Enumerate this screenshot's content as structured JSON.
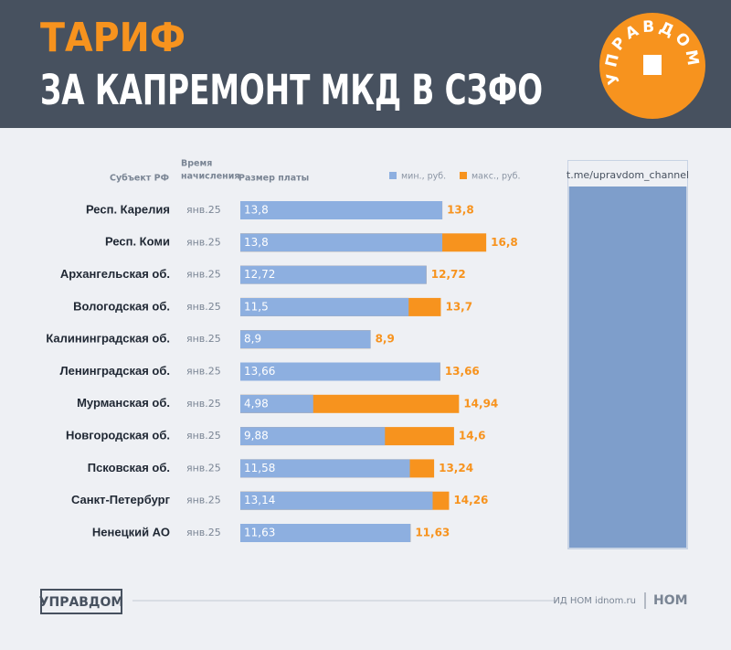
{
  "header": {
    "title_line1": "ТАРИФ",
    "title_line2": "ЗА КАПРЕМОНТ МКД В СЗФО",
    "logo": "УПРАВДОМ"
  },
  "chart_data": {
    "type": "bar",
    "orientation": "horizontal",
    "column_subject": "Субъект РФ",
    "column_date": [
      "Время",
      "начисления"
    ],
    "column_value": "Размер платы",
    "categories": [
      "Респ. Карелия",
      "Респ. Коми",
      "Архангельская об.",
      "Вологодская об.",
      "Калининградская об.",
      "Ленинградская об.",
      "Мурманская об.",
      "Новгородская об.",
      "Псковская об.",
      "Санкт-Петербург",
      "Ненецкий АО"
    ],
    "dates": [
      "янв.25",
      "янв.25",
      "янв.25",
      "янв.25",
      "янв.25",
      "янв.25",
      "янв.25",
      "янв.25",
      "янв.25",
      "янв.25",
      "янв.25"
    ],
    "series": [
      {
        "name": "мин., руб.",
        "color": "#8dafe0",
        "values": [
          13.8,
          13.8,
          12.72,
          11.5,
          8.9,
          13.66,
          4.98,
          9.88,
          11.58,
          13.14,
          11.63
        ],
        "value_labels": [
          "13,8",
          "13,8",
          "12,72",
          "11,5",
          "8,9",
          "13,66",
          "4,98",
          "9,88",
          "11,58",
          "13,14",
          "11,63"
        ]
      },
      {
        "name": "макс., руб.",
        "color": "#f7931e",
        "values": [
          13.8,
          16.8,
          12.72,
          13.7,
          8.9,
          13.66,
          14.94,
          14.6,
          13.24,
          14.26,
          11.63
        ],
        "value_labels": [
          "13,8",
          "16,8",
          "12,72",
          "13,7",
          "8,9",
          "13,66",
          "14,94",
          "14,6",
          "13,24",
          "14,26",
          "11,63"
        ]
      }
    ]
  },
  "side": {
    "channel": "t.me/upravdom_channel"
  },
  "footer": {
    "brand": "УПРАВДОМ",
    "publisher": "ИД НОМ idnom.ru",
    "publisher_logo": "НОМ"
  }
}
